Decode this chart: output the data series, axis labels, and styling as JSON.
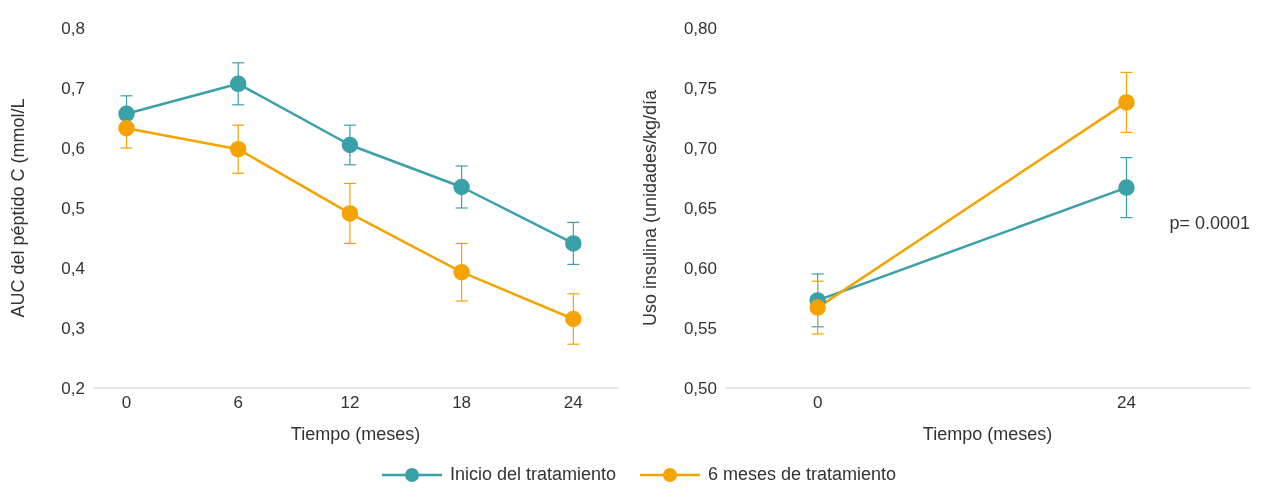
{
  "chart_data": [
    {
      "type": "line",
      "xlabel": "Tiempo (meses)",
      "ylabel": "AUC del péptido C (mmol/L",
      "categories": [
        "0",
        "6",
        "12",
        "18",
        "24"
      ],
      "ylim": [
        0.2,
        0.8
      ],
      "yticks": [
        {
          "value": 0.2,
          "label": "0,2"
        },
        {
          "value": 0.3,
          "label": "0,3"
        },
        {
          "value": 0.4,
          "label": "0,4"
        },
        {
          "value": 0.5,
          "label": "0,5"
        },
        {
          "value": 0.6,
          "label": "0,6"
        },
        {
          "value": 0.7,
          "label": "0,7"
        },
        {
          "value": 0.8,
          "label": "0,8"
        }
      ],
      "grid": false,
      "marker": "circle",
      "legend": "bottom",
      "series": [
        {
          "name": "Inicio del tratamiento",
          "color": "#3aa1a8",
          "values": [
            0.657,
            0.707,
            0.605,
            0.535,
            0.441
          ],
          "errors": [
            0.03,
            0.035,
            0.033,
            0.035,
            0.035
          ]
        },
        {
          "name": "6 meses de tratamiento",
          "color": "#f5a300",
          "values": [
            0.633,
            0.598,
            0.491,
            0.393,
            0.315
          ],
          "errors": [
            0.033,
            0.04,
            0.05,
            0.048,
            0.042
          ]
        }
      ]
    },
    {
      "type": "line",
      "xlabel": "Tiempo (meses)",
      "ylabel": "Uso insulina (unidades/kg/día",
      "categories": [
        "0",
        "24"
      ],
      "ylim": [
        0.5,
        0.8
      ],
      "yticks": [
        {
          "value": 0.5,
          "label": "0,50"
        },
        {
          "value": 0.55,
          "label": "0,55"
        },
        {
          "value": 0.6,
          "label": "0,60"
        },
        {
          "value": 0.65,
          "label": "0,65"
        },
        {
          "value": 0.7,
          "label": "0,70"
        },
        {
          "value": 0.75,
          "label": "0,75"
        },
        {
          "value": 0.8,
          "label": "0,80"
        }
      ],
      "grid": false,
      "marker": "circle",
      "annotations": [
        "p= 0.0001"
      ],
      "series": [
        {
          "color": "#3aa1a8",
          "values": [
            0.573,
            0.667
          ],
          "errors": [
            0.022,
            0.025
          ]
        },
        {
          "color": "#f5a300",
          "values": [
            0.567,
            0.738
          ],
          "errors": [
            0.022,
            0.025
          ]
        }
      ]
    }
  ]
}
